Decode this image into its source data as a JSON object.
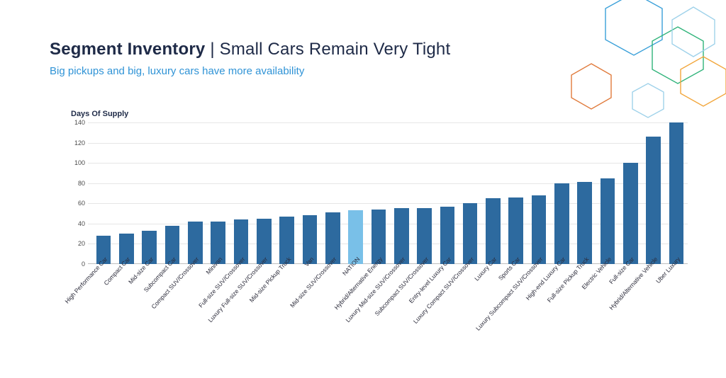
{
  "header": {
    "title_bold": "Segment Inventory",
    "title_sep": " | ",
    "title_rest": "Small Cars Remain Very Tight",
    "subtitle": "Big pickups and big, luxury cars have more availability"
  },
  "chart": {
    "type": "bar",
    "title": "Days Of Supply",
    "title_fontsize": 11,
    "background_color": "#ffffff",
    "grid_color": "#e6e6e6",
    "axis_color": "#bfbfbf",
    "bar_color": "#2d6a9f",
    "highlight_color": "#79c0e8",
    "label_color": "#2b2b3a",
    "label_fontsize": 8.5,
    "ylabel_fontsize": 9,
    "ylim": [
      0,
      140
    ],
    "ytick_step": 20,
    "yticks": [
      0,
      20,
      40,
      60,
      80,
      100,
      120,
      140
    ],
    "bar_width": 0.64,
    "x_rotation_deg": -48,
    "categories": [
      "High Performance Car",
      "Compact Car",
      "Mid-size Car",
      "Subcompact Car",
      "Compact SUV/Crossover",
      "Minivan",
      "Full-size SUV/Crossover",
      "Luxury Full-size SUV/Crossover",
      "Mid-size Pickup Truck",
      "Van",
      "Mid-size SUV/Crossover",
      "NATION",
      "Hybrid/Alternative Energy",
      "Luxury Mid-size SUV/Crossover",
      "Subcompact SUV/Crossover",
      "Entry-level Luxury Car",
      "Luxury Compact SUV/Crossover",
      "Luxury Car",
      "Sports Car",
      "Luxury Subcompact SUV/Crossover",
      "High-end Luxury Car",
      "Full-size Pickup Truck",
      "Electric Vehicle",
      "Full-size Car",
      "Hybrid/Alternative Vehicle",
      "Uber Luxury"
    ],
    "values": [
      28,
      30,
      33,
      38,
      42,
      42,
      44,
      45,
      47,
      48,
      51,
      53,
      54,
      55,
      55,
      57,
      60,
      65,
      66,
      68,
      80,
      81,
      85,
      100,
      126,
      140
    ],
    "highlight_index": 11
  },
  "decoration": {
    "hex_stroke_colors": [
      "#3aa0d9",
      "#2fb37a",
      "#f2a63b",
      "#e07a3b",
      "#9fd2ea"
    ],
    "hex_stroke_width": 1.4
  }
}
